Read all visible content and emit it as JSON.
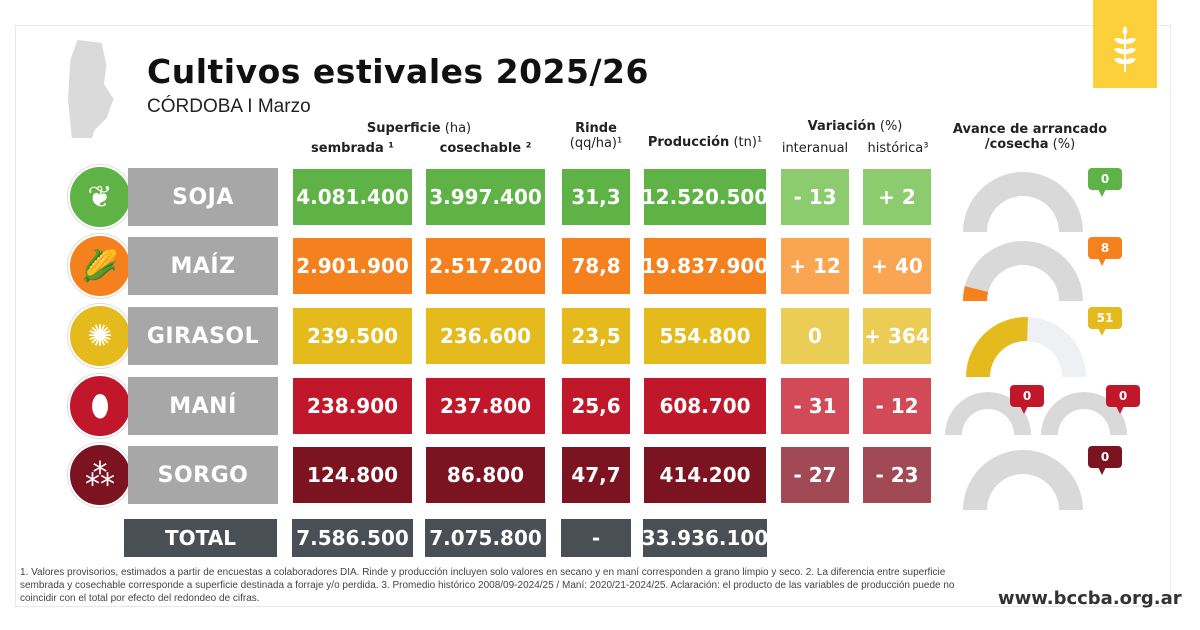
{
  "header": {
    "title": "Cultivos estivales 2025/26",
    "subtitle": "CÓRDOBA I Marzo"
  },
  "columns": {
    "superficie": "Superficie",
    "superficie_unit": "(ha)",
    "sembrada": "sembrada ¹",
    "cosechable": "cosechable ²",
    "rinde": "Rinde",
    "rinde_unit": "(qq/ha)¹",
    "produccion": "Producción",
    "produccion_unit": "(tn)¹",
    "variacion": "Variación",
    "variacion_unit": "(%)",
    "interanual": "interanual",
    "historica": "histórica³",
    "avance": "Avance de arrancado",
    "avance2": "/cosecha",
    "avance_unit": "(%)"
  },
  "crops": [
    {
      "name": "SOJA",
      "icon": "soy-leaf-icon",
      "color": "#5fb246",
      "var_color": "#8dcb6f",
      "sembrada": "4.081.400",
      "cosechable": "3.997.400",
      "rinde": "31,3",
      "produccion": "12.520.500",
      "interanual": "- 13",
      "historica": "+ 2",
      "avance": [
        "0"
      ]
    },
    {
      "name": "MAÍZ",
      "icon": "corn-icon",
      "color": "#f5801e",
      "var_color": "#f9a552",
      "sembrada": "2.901.900",
      "cosechable": "2.517.200",
      "rinde": "78,8",
      "produccion": "19.837.900",
      "interanual": "+ 12",
      "historica": "+ 40",
      "avance": [
        "8"
      ]
    },
    {
      "name": "GIRASOL",
      "icon": "sunflower-icon",
      "color": "#e4ba1d",
      "var_color": "#ebcd55",
      "sembrada": "239.500",
      "cosechable": "236.600",
      "rinde": "23,5",
      "produccion": "554.800",
      "interanual": "0",
      "historica": "+ 364",
      "avance": [
        "51"
      ]
    },
    {
      "name": "MANÍ",
      "icon": "peanut-icon",
      "color": "#c0182a",
      "var_color": "#d24a57",
      "sembrada": "238.900",
      "cosechable": "237.800",
      "rinde": "25,6",
      "produccion": "608.700",
      "interanual": "- 31",
      "historica": "- 12",
      "avance": [
        "0",
        "0"
      ]
    },
    {
      "name": "SORGO",
      "icon": "sorghum-icon",
      "color": "#7b1420",
      "var_color": "#a14954",
      "sembrada": "124.800",
      "cosechable": "86.800",
      "rinde": "47,7",
      "produccion": "414.200",
      "interanual": "- 27",
      "historica": "- 23",
      "avance": [
        "0"
      ]
    }
  ],
  "total": {
    "label": "TOTAL",
    "sembrada": "7.586.500",
    "cosechable": "7.075.800",
    "rinde": "-",
    "produccion": "33.936.100"
  },
  "footnote": "1. Valores provisorios, estimados a partir de encuestas a colaboradores DIA. Rinde y producción incluyen solo valores en secano y en maní corresponden a grano limpio y seco. 2. La diferencia entre superficie sembrada y cosechable corresponde a superficie destinada a forraje y/o perdida. 3. Promedio histórico 2008/09-2024/25 / Maní: 2020/21-2024/25. Aclaración: el producto de las variables de producción puede no coincidir con el total por efecto del redondeo de cifras.",
  "website": "www.bccba.org.ar",
  "colors": {
    "gauge_bg": "#d9d9d9",
    "total_bg": "#4a4f55",
    "logo": "#fcd03a"
  }
}
